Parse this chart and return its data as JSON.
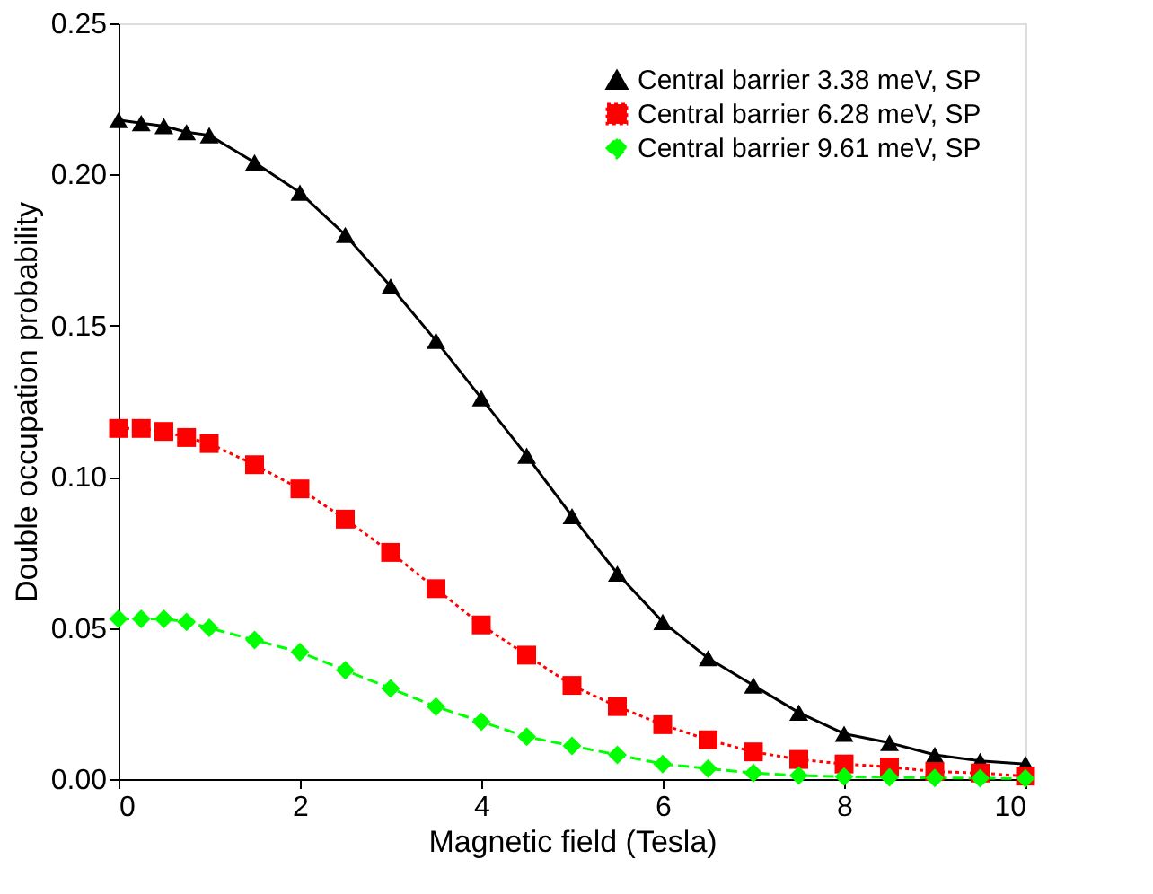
{
  "chart_data": {
    "type": "line",
    "xlabel": "Magnetic field (Tesla)",
    "ylabel": "Double occupation probability",
    "x": [
      0,
      0.25,
      0.5,
      0.75,
      1,
      1.5,
      2,
      2.5,
      3,
      3.5,
      4,
      4.5,
      5,
      5.5,
      6,
      6.5,
      7,
      7.5,
      8,
      8.5,
      9,
      9.5,
      10
    ],
    "series": [
      {
        "name": "Central barrier 3.38 meV, SP",
        "color": "#000000",
        "marker": "triangle",
        "line_style": "solid",
        "values": [
          0.218,
          0.217,
          0.216,
          0.214,
          0.213,
          0.204,
          0.194,
          0.18,
          0.163,
          0.145,
          0.126,
          0.107,
          0.087,
          0.068,
          0.052,
          0.04,
          0.031,
          0.022,
          0.015,
          0.012,
          0.008,
          0.006,
          0.005
        ]
      },
      {
        "name": "Central barrier 6.28 meV, SP",
        "color": "#ff0000",
        "marker": "square",
        "line_style": "dotted",
        "values": [
          0.116,
          0.116,
          0.115,
          0.113,
          0.111,
          0.104,
          0.096,
          0.086,
          0.075,
          0.063,
          0.051,
          0.041,
          0.031,
          0.024,
          0.018,
          0.013,
          0.009,
          0.0065,
          0.005,
          0.004,
          0.0025,
          0.002,
          0.001
        ]
      },
      {
        "name": "Central barrier 9.61 meV, SP",
        "color": "#00ff00",
        "marker": "diamond",
        "line_style": "dashed",
        "values": [
          0.053,
          0.053,
          0.053,
          0.052,
          0.05,
          0.046,
          0.042,
          0.036,
          0.03,
          0.024,
          0.019,
          0.014,
          0.011,
          0.008,
          0.005,
          0.0035,
          0.002,
          0.0012,
          0.0008,
          0.0006,
          0.0004,
          0.0003,
          0.0002
        ]
      }
    ],
    "xlim": [
      0,
      10
    ],
    "xticks": [
      0,
      2,
      4,
      6,
      8,
      10
    ],
    "ylim": [
      0,
      0.25
    ],
    "yticks": [
      {
        "value": 0,
        "label": "0.00"
      },
      {
        "value": 0.05,
        "label": "0.05"
      },
      {
        "value": 0.1,
        "label": "0.10"
      },
      {
        "value": 0.15,
        "label": "0.15"
      },
      {
        "value": 0.2,
        "label": "0.20"
      },
      {
        "value": 0.25,
        "label": "0.25"
      }
    ],
    "grid": false,
    "legend": "top right"
  }
}
